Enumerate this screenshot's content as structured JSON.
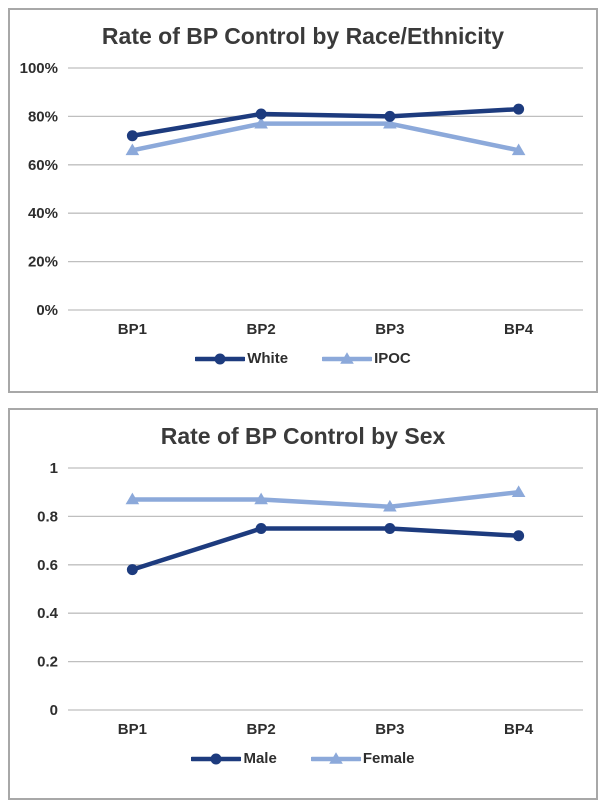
{
  "colors": {
    "series_dark_blue": "#1d3b7e",
    "series_light_blue": "#8ca9da",
    "gridline_gray": "#bfbfbf",
    "panel_border_gray": "#a8a8a8",
    "text_dark": "#2e2e2e"
  },
  "chart_data": [
    {
      "type": "line",
      "title": "Rate of BP Control by Race/Ethnicity",
      "categories": [
        "BP1",
        "BP2",
        "BP3",
        "BP4"
      ],
      "series": [
        {
          "name": "White",
          "values": [
            0.72,
            0.81,
            0.8,
            0.83
          ],
          "color": "#1d3b7e",
          "marker": "circle"
        },
        {
          "name": "IPOC",
          "values": [
            0.66,
            0.77,
            0.77,
            0.66
          ],
          "color": "#8ca9da",
          "marker": "triangle"
        }
      ],
      "ylim": [
        0,
        1
      ],
      "y_ticks": [
        {
          "v": 0.0,
          "label": "0%"
        },
        {
          "v": 0.2,
          "label": "20%"
        },
        {
          "v": 0.4,
          "label": "40%"
        },
        {
          "v": 0.6,
          "label": "60%"
        },
        {
          "v": 0.8,
          "label": "80%"
        },
        {
          "v": 1.0,
          "label": "100%"
        }
      ],
      "grid": true,
      "legend_position": "bottom"
    },
    {
      "type": "line",
      "title": "Rate of BP Control by Sex",
      "categories": [
        "BP1",
        "BP2",
        "BP3",
        "BP4"
      ],
      "series": [
        {
          "name": "Male",
          "values": [
            0.58,
            0.75,
            0.75,
            0.72
          ],
          "color": "#1d3b7e",
          "marker": "circle"
        },
        {
          "name": "Female",
          "values": [
            0.87,
            0.87,
            0.84,
            0.9
          ],
          "color": "#8ca9da",
          "marker": "triangle"
        }
      ],
      "ylim": [
        0,
        1
      ],
      "y_ticks": [
        {
          "v": 0.0,
          "label": "0"
        },
        {
          "v": 0.2,
          "label": "0.2"
        },
        {
          "v": 0.4,
          "label": "0.4"
        },
        {
          "v": 0.6,
          "label": "0.6"
        },
        {
          "v": 0.8,
          "label": "0.8"
        },
        {
          "v": 1.0,
          "label": "1"
        }
      ],
      "grid": true,
      "legend_position": "bottom"
    }
  ]
}
